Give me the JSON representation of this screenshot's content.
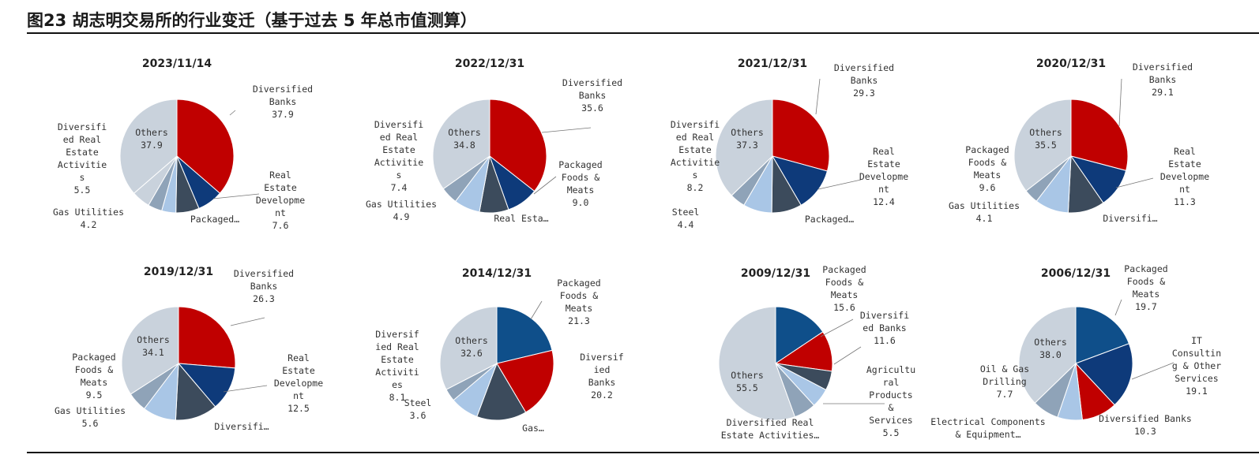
{
  "figure": {
    "title": "图23 胡志明交易所的行业变迁（基于过去 5 年总市值测算）"
  },
  "colors": {
    "Diversified Banks": "#c00000",
    "Real Estate Development": "#0e3a7a",
    "Packaged Foods & Meats": "#0f4f8a",
    "Diversified Real Estate Activities": "#a9c6e6",
    "Gas Utilities": "#8fa3b8",
    "Steel": "#9db0c5",
    "Others": "#c9d2dc",
    "dark": "#3c4b5c",
    "IT Consulting & Other Services": "#0e3a7a",
    "Agricultural Products & Services": "#a9c6e6",
    "Oil & Gas Drilling": "#8fa3b8",
    "Electrical Components & Equipment": "#a9c6e6"
  },
  "chart_data": [
    {
      "type": "pie",
      "title": "2023/11/14",
      "slices": [
        {
          "name": "Diversified Banks",
          "value": 37.9,
          "color": "#c00000",
          "label": [
            "Diversified",
            "Banks",
            "37.9"
          ]
        },
        {
          "name": "Real Estate Development",
          "value": 7.6,
          "color": "#0e3a7a",
          "label": [
            "Real",
            "Estate",
            "Developme",
            "nt",
            "7.6"
          ]
        },
        {
          "name": "Packaged Foods & Meats",
          "value": 6.9,
          "color": "#3c4b5c",
          "label": [
            "Packaged…"
          ]
        },
        {
          "name": "Gas Utilities (light)",
          "value": 4.2,
          "color": "#a9c6e6",
          "label": []
        },
        {
          "name": "Gas Utilities",
          "value": 4.2,
          "color": "#8fa3b8",
          "label": [
            "Gas Utilities",
            "4.2"
          ]
        },
        {
          "name": "Diversified Real Estate Activities",
          "value": 5.5,
          "color": "#c9d2dc",
          "label": [
            "Diversifi",
            "ed Real",
            "Estate",
            "Activitie",
            "s",
            "5.5"
          ]
        },
        {
          "name": "Others",
          "value": 37.9,
          "color": "#c9d2dc",
          "label": [
            "Others",
            "37.9"
          ],
          "inside": true
        }
      ]
    },
    {
      "type": "pie",
      "title": "2022/12/31",
      "slices": [
        {
          "name": "Diversified Banks",
          "value": 35.6,
          "color": "#c00000",
          "label": [
            "Diversified",
            "Banks",
            "35.6"
          ]
        },
        {
          "name": "Packaged Foods & Meats",
          "value": 9.0,
          "color": "#0e3a7a",
          "label": [
            "Packaged",
            "Foods &",
            "Meats",
            "9.0"
          ]
        },
        {
          "name": "Real Estate Development",
          "value": 8.3,
          "color": "#3c4b5c",
          "label": [
            "Real Esta…"
          ]
        },
        {
          "name": "Diversified Real Estate Activities",
          "value": 7.4,
          "color": "#a9c6e6",
          "label": [
            "Diversifi",
            "ed Real",
            "Estate",
            "Activitie",
            "s",
            "7.4"
          ]
        },
        {
          "name": "Gas Utilities",
          "value": 4.9,
          "color": "#8fa3b8",
          "label": [
            "Gas Utilities",
            "4.9"
          ]
        },
        {
          "name": "Others",
          "value": 34.8,
          "color": "#c9d2dc",
          "label": [
            "Others",
            "34.8"
          ],
          "inside": true
        }
      ]
    },
    {
      "type": "pie",
      "title": "2021/12/31",
      "slices": [
        {
          "name": "Diversified Banks",
          "value": 29.3,
          "color": "#c00000",
          "label": [
            "Diversified",
            "Banks",
            "29.3"
          ]
        },
        {
          "name": "Real Estate Development",
          "value": 12.4,
          "color": "#0e3a7a",
          "label": [
            "Real",
            "Estate",
            "Developme",
            "nt",
            "12.4"
          ]
        },
        {
          "name": "Packaged Foods & Meats",
          "value": 8.6,
          "color": "#3c4b5c",
          "label": [
            "Packaged…"
          ]
        },
        {
          "name": "Diversified Real Estate Activities",
          "value": 8.2,
          "color": "#a9c6e6",
          "label": [
            "Diversifi",
            "ed Real",
            "Estate",
            "Activitie",
            "s",
            "8.2"
          ]
        },
        {
          "name": "Steel",
          "value": 4.4,
          "color": "#8fa3b8",
          "label": [
            "Steel",
            "4.4"
          ]
        },
        {
          "name": "Others",
          "value": 37.3,
          "color": "#c9d2dc",
          "label": [
            "Others",
            "37.3"
          ],
          "inside": true
        }
      ]
    },
    {
      "type": "pie",
      "title": "2020/12/31",
      "slices": [
        {
          "name": "Diversified Banks",
          "value": 29.1,
          "color": "#c00000",
          "label": [
            "Diversified",
            "Banks",
            "29.1"
          ]
        },
        {
          "name": "Real Estate Development",
          "value": 11.3,
          "color": "#0e3a7a",
          "label": [
            "Real",
            "Estate",
            "Developme",
            "nt",
            "11.3"
          ]
        },
        {
          "name": "Diversified Real Estate Activities",
          "value": 10.4,
          "color": "#3c4b5c",
          "label": [
            "Diversifi…"
          ]
        },
        {
          "name": "Packaged Foods & Meats",
          "value": 9.6,
          "color": "#a9c6e6",
          "label": [
            "Packaged",
            "Foods &",
            "Meats",
            "9.6"
          ]
        },
        {
          "name": "Gas Utilities",
          "value": 4.1,
          "color": "#8fa3b8",
          "label": [
            "Gas Utilities",
            "4.1"
          ]
        },
        {
          "name": "Others",
          "value": 35.5,
          "color": "#c9d2dc",
          "label": [
            "Others",
            "35.5"
          ],
          "inside": true
        }
      ]
    },
    {
      "type": "pie",
      "title": "2019/12/31",
      "slices": [
        {
          "name": "Diversified Banks",
          "value": 26.3,
          "color": "#c00000",
          "label": [
            "Diversified",
            "Banks",
            "26.3"
          ]
        },
        {
          "name": "Real Estate Development",
          "value": 12.5,
          "color": "#0e3a7a",
          "label": [
            "Real",
            "Estate",
            "Developme",
            "nt",
            "12.5"
          ]
        },
        {
          "name": "Diversified Real Estate Activities",
          "value": 12.0,
          "color": "#3c4b5c",
          "label": [
            "Diversifi…"
          ]
        },
        {
          "name": "Packaged Foods & Meats",
          "value": 9.5,
          "color": "#a9c6e6",
          "label": [
            "Packaged",
            "Foods &",
            "Meats",
            "9.5"
          ]
        },
        {
          "name": "Gas Utilities",
          "value": 5.6,
          "color": "#8fa3b8",
          "label": [
            "Gas Utilities",
            "5.6"
          ]
        },
        {
          "name": "Others",
          "value": 34.1,
          "color": "#c9d2dc",
          "label": [
            "Others",
            "34.1"
          ],
          "inside": true
        }
      ]
    },
    {
      "type": "pie",
      "title": "2014/12/31",
      "slices": [
        {
          "name": "Packaged Foods & Meats",
          "value": 21.3,
          "color": "#0f4f8a",
          "label": [
            "Packaged",
            "Foods &",
            "Meats",
            "21.3"
          ]
        },
        {
          "name": "Diversified Banks",
          "value": 20.2,
          "color": "#c00000",
          "label": [
            "Diversif",
            "ied",
            "Banks",
            "20.2"
          ]
        },
        {
          "name": "Gas Utilities",
          "value": 14.2,
          "color": "#3c4b5c",
          "label": [
            "Gas…"
          ]
        },
        {
          "name": "Diversified Real Estate Activities",
          "value": 8.1,
          "color": "#a9c6e6",
          "label": [
            "Diversif",
            "ied Real",
            "Estate",
            "Activiti",
            "es",
            "8.1"
          ]
        },
        {
          "name": "Steel",
          "value": 3.6,
          "color": "#8fa3b8",
          "label": [
            "Steel",
            "3.6"
          ]
        },
        {
          "name": "Others",
          "value": 32.6,
          "color": "#c9d2dc",
          "label": [
            "Others",
            "32.6"
          ],
          "inside": true
        }
      ]
    },
    {
      "type": "pie",
      "title": "2009/12/31",
      "slices": [
        {
          "name": "Packaged Foods & Meats",
          "value": 15.6,
          "color": "#0f4f8a",
          "label": [
            "Packaged",
            "Foods &",
            "Meats",
            "15.6"
          ]
        },
        {
          "name": "Diversified Banks",
          "value": 11.6,
          "color": "#c00000",
          "label": [
            "Diversifi",
            "ed Banks",
            "11.6"
          ]
        },
        {
          "name": "Diversified Real Estate Activities (dark)",
          "value": 5.5,
          "color": "#3c4b5c",
          "label": []
        },
        {
          "name": "Agricultural Products & Services",
          "value": 5.5,
          "color": "#a9c6e6",
          "label": [
            "Agricultu",
            "ral",
            "Products",
            "&",
            "Services",
            "5.5"
          ]
        },
        {
          "name": "Diversified Real Estate Activities",
          "value": 6.3,
          "color": "#8fa3b8",
          "label": [
            "Diversified Real",
            "Estate Activities…"
          ]
        },
        {
          "name": "Others",
          "value": 55.5,
          "color": "#c9d2dc",
          "label": [
            "Others",
            "55.5"
          ],
          "inside": true
        }
      ]
    },
    {
      "type": "pie",
      "title": "2006/12/31",
      "slices": [
        {
          "name": "Packaged Foods & Meats",
          "value": 19.7,
          "color": "#0f4f8a",
          "label": [
            "Packaged",
            "Foods &",
            "Meats",
            "19.7"
          ]
        },
        {
          "name": "IT Consulting & Other Services",
          "value": 19.1,
          "color": "#0e3a7a",
          "label": [
            "IT",
            "Consultin",
            "g & Other",
            "Services",
            "19.1"
          ]
        },
        {
          "name": "Diversified Banks",
          "value": 10.3,
          "color": "#c00000",
          "label": [
            "Diversified Banks",
            "10.3"
          ]
        },
        {
          "name": "Electrical Components & Equipment",
          "value": 7.2,
          "color": "#a9c6e6",
          "label": [
            "Electrical Components",
            "& Equipment…"
          ]
        },
        {
          "name": "Oil & Gas Drilling",
          "value": 7.7,
          "color": "#8fa3b8",
          "label": [
            "Oil & Gas",
            "Drilling",
            "7.7"
          ]
        },
        {
          "name": "Others",
          "value": 38.0,
          "color": "#c9d2dc",
          "label": [
            "Others",
            "38.0"
          ],
          "inside": true
        }
      ]
    }
  ]
}
